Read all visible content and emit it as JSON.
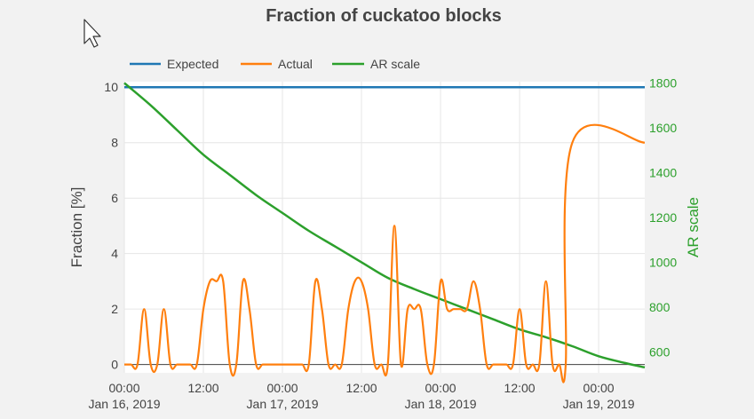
{
  "colors": {
    "expected": "#1f77b4",
    "actual": "#ff7f0e",
    "ar_scale": "#2ca02c",
    "text": "#444444",
    "plot_bg": "#ffffff",
    "page_bg": "#f2f2f2"
  },
  "cursor_icon": "mouse-pointer-icon",
  "chart_data": {
    "type": "line",
    "title": "Fraction of cuckatoo blocks",
    "ylabel": "Fraction [%]",
    "y2label": "AR scale",
    "xlabel": "",
    "xlim": [
      "2019-01-16 00:00",
      "2019-01-19 07:00"
    ],
    "ylim": [
      -0.3,
      10.2
    ],
    "y2lim": [
      506,
      1806
    ],
    "grid": true,
    "legend_placement": "top-left",
    "x_ticks": [
      {
        "t": "2019-01-16 00:00",
        "line1": "00:00",
        "line2": "Jan 16, 2019"
      },
      {
        "t": "2019-01-16 12:00",
        "line1": "12:00",
        "line2": ""
      },
      {
        "t": "2019-01-17 00:00",
        "line1": "00:00",
        "line2": "Jan 17, 2019"
      },
      {
        "t": "2019-01-17 12:00",
        "line1": "12:00",
        "line2": ""
      },
      {
        "t": "2019-01-18 00:00",
        "line1": "00:00",
        "line2": "Jan 18, 2019"
      },
      {
        "t": "2019-01-18 12:00",
        "line1": "12:00",
        "line2": ""
      },
      {
        "t": "2019-01-19 00:00",
        "line1": "00:00",
        "line2": "Jan 19, 2019"
      }
    ],
    "y_ticks": [
      0,
      2,
      4,
      6,
      8,
      10
    ],
    "y2_ticks": [
      600,
      800,
      1000,
      1200,
      1400,
      1600,
      1800
    ],
    "series": [
      {
        "name": "Expected",
        "axis": "y",
        "x": [
          "2019-01-16 00:00",
          "2019-01-19 07:00"
        ],
        "y": [
          10,
          10
        ]
      },
      {
        "name": "Actual",
        "axis": "y",
        "x": [
          "2019-01-16 00:00",
          "2019-01-16 01:00",
          "2019-01-16 02:00",
          "2019-01-16 03:00",
          "2019-01-16 04:00",
          "2019-01-16 05:00",
          "2019-01-16 06:00",
          "2019-01-16 07:00",
          "2019-01-16 08:00",
          "2019-01-16 09:00",
          "2019-01-16 10:00",
          "2019-01-16 11:00",
          "2019-01-16 12:00",
          "2019-01-16 13:00",
          "2019-01-16 14:00",
          "2019-01-16 15:00",
          "2019-01-16 16:00",
          "2019-01-16 17:00",
          "2019-01-16 18:00",
          "2019-01-16 19:00",
          "2019-01-16 20:00",
          "2019-01-16 21:00",
          "2019-01-16 22:00",
          "2019-01-16 23:00",
          "2019-01-17 00:00",
          "2019-01-17 01:00",
          "2019-01-17 02:00",
          "2019-01-17 03:00",
          "2019-01-17 04:00",
          "2019-01-17 05:00",
          "2019-01-17 06:00",
          "2019-01-17 07:00",
          "2019-01-17 08:00",
          "2019-01-17 09:00",
          "2019-01-17 10:00",
          "2019-01-17 11:00",
          "2019-01-17 12:00",
          "2019-01-17 13:00",
          "2019-01-17 14:00",
          "2019-01-17 15:00",
          "2019-01-17 16:00",
          "2019-01-17 17:00",
          "2019-01-17 18:00",
          "2019-01-17 19:00",
          "2019-01-17 20:00",
          "2019-01-17 21:00",
          "2019-01-17 22:00",
          "2019-01-17 23:00",
          "2019-01-18 00:00",
          "2019-01-18 01:00",
          "2019-01-18 02:00",
          "2019-01-18 03:00",
          "2019-01-18 04:00",
          "2019-01-18 05:00",
          "2019-01-18 06:00",
          "2019-01-18 07:00",
          "2019-01-18 08:00",
          "2019-01-18 09:00",
          "2019-01-18 10:00",
          "2019-01-18 11:00",
          "2019-01-18 12:00",
          "2019-01-18 13:00",
          "2019-01-18 14:00",
          "2019-01-18 15:00",
          "2019-01-18 16:00",
          "2019-01-18 17:00",
          "2019-01-18 18:00",
          "2019-01-18 19:00",
          "2019-01-18 20:00",
          "2019-01-18 21:00",
          "2019-01-18 22:00",
          "2019-01-18 23:00",
          "2019-01-19 00:00",
          "2019-01-19 01:00",
          "2019-01-19 02:00",
          "2019-01-19 03:00",
          "2019-01-19 04:00",
          "2019-01-19 05:00",
          "2019-01-19 06:00",
          "2019-01-19 07:00"
        ],
        "y": [
          0,
          0,
          0,
          2,
          0,
          0,
          2,
          0,
          0,
          0,
          0,
          0,
          2,
          3,
          3,
          3,
          0,
          0,
          3,
          2,
          0,
          0,
          0,
          0,
          0,
          0,
          0,
          0,
          0,
          3,
          2,
          0,
          0,
          0,
          2,
          3,
          3,
          2,
          0,
          0,
          0,
          5,
          0,
          2,
          2,
          2,
          0,
          0,
          3,
          2,
          2,
          2,
          2,
          3,
          2,
          0,
          0,
          0,
          0,
          0,
          2,
          0,
          0,
          0,
          3,
          0,
          0,
          0,
          8,
          8,
          8,
          8,
          8,
          8,
          8,
          8,
          8,
          8,
          8,
          8
        ],
        "note": ""
      },
      {
        "name": "AR scale",
        "axis": "y2",
        "x": [
          "2019-01-16 00:00",
          "2019-01-16 04:00",
          "2019-01-16 08:00",
          "2019-01-16 12:00",
          "2019-01-16 16:00",
          "2019-01-16 20:00",
          "2019-01-17 00:00",
          "2019-01-17 04:00",
          "2019-01-17 08:00",
          "2019-01-17 12:00",
          "2019-01-17 16:00",
          "2019-01-17 20:00",
          "2019-01-18 00:00",
          "2019-01-18 04:00",
          "2019-01-18 08:00",
          "2019-01-18 12:00",
          "2019-01-18 16:00",
          "2019-01-18 20:00",
          "2019-01-19 00:00",
          "2019-01-19 04:00",
          "2019-01-19 07:00"
        ],
        "y": [
          1800,
          1700,
          1590,
          1480,
          1390,
          1300,
          1220,
          1140,
          1070,
          1000,
          930,
          880,
          835,
          790,
          745,
          700,
          665,
          625,
          580,
          550,
          530
        ]
      }
    ]
  }
}
